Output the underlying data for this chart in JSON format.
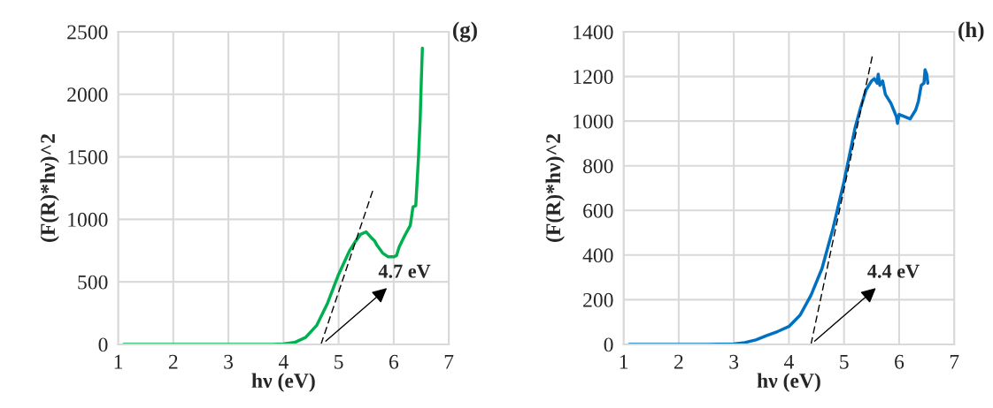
{
  "chart_data": [
    {
      "type": "line",
      "xlabel": "hν (eV)",
      "ylabel": "(F(R)*hν)^2",
      "xlim": [
        1,
        7
      ],
      "xticks": [
        1,
        2,
        3,
        4,
        5,
        6,
        7
      ],
      "ylim": [
        0,
        2500
      ],
      "yticks": [
        0,
        500,
        1000,
        1500,
        2000,
        2500
      ],
      "grid": true,
      "legend": false,
      "series": [
        {
          "color": "#00b050",
          "line_style": "solid",
          "x": [
            1.1,
            2.0,
            3.0,
            3.8,
            4.0,
            4.2,
            4.4,
            4.6,
            4.8,
            5.0,
            5.2,
            5.3,
            5.4,
            5.5,
            5.6,
            5.65,
            5.7,
            5.8,
            5.9,
            6.0,
            6.05,
            6.1,
            6.2,
            6.3,
            6.35,
            6.4,
            6.45,
            6.48,
            6.5,
            6.52
          ],
          "values": [
            0,
            0,
            0,
            0,
            3,
            15,
            55,
            150,
            330,
            560,
            750,
            820,
            880,
            900,
            850,
            830,
            790,
            730,
            700,
            700,
            710,
            780,
            870,
            950,
            1100,
            1110,
            1500,
            1800,
            2100,
            2370
          ]
        },
        {
          "color": "#000000",
          "line_style": "dashed",
          "x": [
            4.68,
            5.62
          ],
          "values": [
            0,
            1230
          ]
        }
      ],
      "annotations": [
        "(g)",
        {
          "text": "4.7 eV",
          "x": 4.7,
          "y": 0
        }
      ]
    },
    {
      "type": "line",
      "xlabel": "hν (eV)",
      "ylabel": "(F(R)*hν)^2",
      "xlim": [
        1,
        7
      ],
      "xticks": [
        1,
        2,
        3,
        4,
        5,
        6,
        7
      ],
      "ylim": [
        0,
        1400
      ],
      "yticks": [
        0,
        200,
        400,
        600,
        800,
        1000,
        1200,
        1400
      ],
      "grid": true,
      "legend": false,
      "series": [
        {
          "color": "#0070c0",
          "line_style": "solid",
          "x": [
            1.1,
            2.0,
            2.5,
            3.0,
            3.2,
            3.4,
            3.6,
            3.8,
            4.0,
            4.2,
            4.4,
            4.6,
            4.8,
            5.0,
            5.1,
            5.2,
            5.3,
            5.4,
            5.5,
            5.55,
            5.6,
            5.62,
            5.65,
            5.7,
            5.75,
            5.8,
            5.85,
            5.9,
            5.95,
            5.97,
            6.0,
            6.1,
            6.2,
            6.3,
            6.35,
            6.4,
            6.45,
            6.47,
            6.5,
            6.52
          ],
          "values": [
            0,
            0,
            0,
            2,
            8,
            20,
            40,
            58,
            80,
            130,
            220,
            340,
            520,
            730,
            850,
            970,
            1060,
            1140,
            1180,
            1190,
            1170,
            1210,
            1160,
            1180,
            1120,
            1100,
            1080,
            1050,
            1020,
            990,
            1030,
            1020,
            1010,
            1050,
            1090,
            1160,
            1170,
            1230,
            1210,
            1170
          ]
        },
        {
          "color": "#000000",
          "line_style": "dashed",
          "x": [
            4.4,
            5.52
          ],
          "values": [
            0,
            1300
          ]
        }
      ],
      "annotations": [
        "(h)",
        {
          "text": "4.4 eV",
          "x": 4.4,
          "y": 0
        }
      ]
    }
  ]
}
